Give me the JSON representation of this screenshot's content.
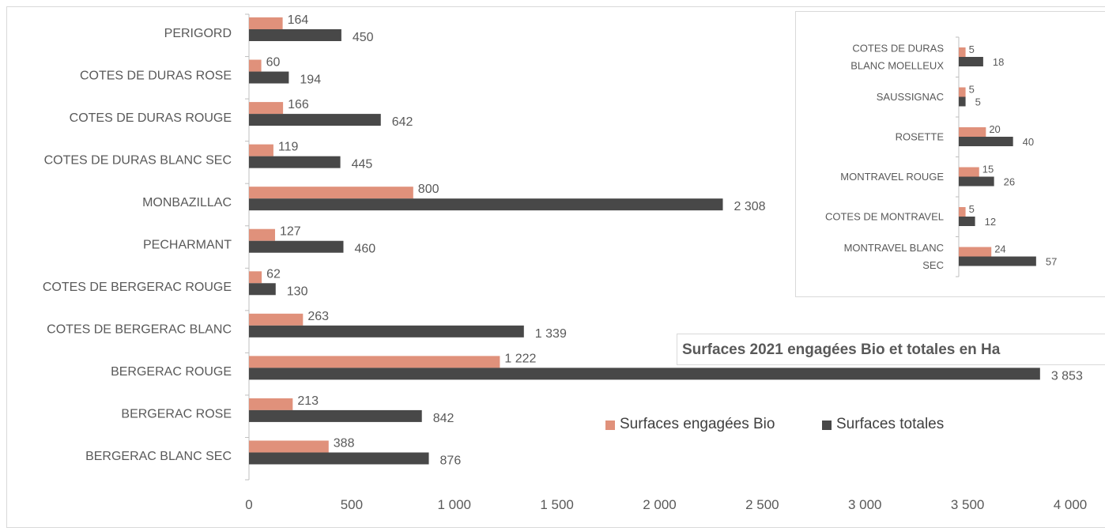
{
  "colors": {
    "bio": "#E0917B",
    "total": "#484848",
    "text": "#595959",
    "axis": "#bfbfbf"
  },
  "title": "Surfaces 2021 engagées Bio et totales en Ha",
  "legend": {
    "bio_label": "Surfaces engagées Bio",
    "total_label": "Surfaces totales"
  },
  "chart_data": [
    {
      "type": "bar",
      "orientation": "horizontal",
      "categories": [
        "PERIGORD",
        "COTES DE DURAS ROSE",
        "COTES DE DURAS ROUGE",
        "COTES DE DURAS BLANC SEC",
        "MONBAZILLAC",
        "PECHARMANT",
        "COTES DE BERGERAC ROUGE",
        "COTES DE BERGERAC BLANC",
        "BERGERAC ROUGE",
        "BERGERAC ROSE",
        "BERGERAC BLANC SEC"
      ],
      "series": [
        {
          "name": "Surfaces engagées Bio",
          "values": [
            164,
            60,
            166,
            119,
            800,
            127,
            62,
            263,
            1222,
            213,
            388
          ],
          "labels": [
            "164",
            "60",
            "166",
            "119",
            "800",
            "127",
            "62",
            "263",
            "1 222",
            "213",
            "388"
          ]
        },
        {
          "name": "Surfaces totales",
          "values": [
            450,
            194,
            642,
            445,
            2308,
            460,
            130,
            1339,
            3853,
            842,
            876
          ],
          "labels": [
            "450",
            "194",
            "642",
            "445",
            "2 308",
            "460",
            "130",
            "1 339",
            "3 853",
            "842",
            "876"
          ]
        }
      ],
      "xlim": [
        0,
        4000
      ],
      "xticks": [
        "0",
        "500",
        "1 000",
        "1 500",
        "2 000",
        "2 500",
        "3 000",
        "3 500",
        "4 000"
      ],
      "grid": false,
      "legend_position": "inside-bottom-right"
    },
    {
      "type": "bar",
      "orientation": "horizontal",
      "categories": [
        [
          "COTES DE DURAS",
          "BLANC MOELLEUX"
        ],
        [
          "SAUSSIGNAC"
        ],
        [
          "ROSETTE"
        ],
        [
          "MONTRAVEL ROUGE"
        ],
        [
          "COTES DE MONTRAVEL"
        ],
        [
          "MONTRAVEL BLANC",
          "SEC"
        ]
      ],
      "series": [
        {
          "name": "Surfaces engagées Bio",
          "values": [
            5,
            5,
            20,
            15,
            5,
            24
          ],
          "labels": [
            "5",
            "5",
            "20",
            "15",
            "5",
            "24"
          ]
        },
        {
          "name": "Surfaces totales",
          "values": [
            18,
            5,
            40,
            26,
            12,
            57
          ],
          "labels": [
            "18",
            "5",
            "40",
            "26",
            "12",
            "57"
          ]
        }
      ],
      "xlim": [
        0,
        60
      ],
      "grid": false
    }
  ]
}
